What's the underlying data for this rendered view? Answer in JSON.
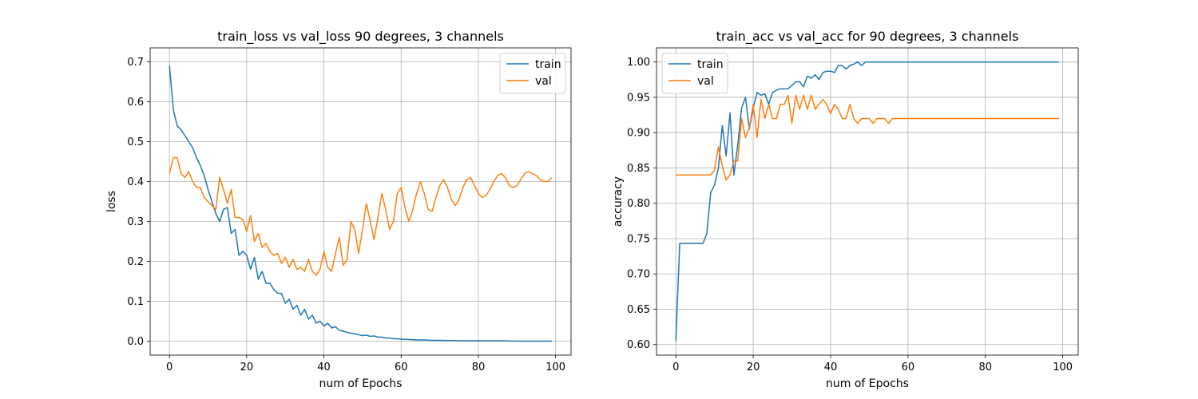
{
  "chart_data": [
    {
      "type": "line",
      "title": "train_loss vs val_loss 90 degrees, 3 channels",
      "xlabel": "num of Epochs",
      "ylabel": "loss",
      "xlim": [
        -5,
        104
      ],
      "ylim": [
        -0.035,
        0.735
      ],
      "xticks": [
        0,
        20,
        40,
        60,
        80,
        100
      ],
      "yticks": [
        0.0,
        0.1,
        0.2,
        0.3,
        0.4,
        0.5,
        0.6,
        0.7
      ],
      "ytick_labels": [
        "0.0",
        "0.1",
        "0.2",
        "0.3",
        "0.4",
        "0.5",
        "0.6",
        "0.7"
      ],
      "grid": true,
      "legend": "top-right",
      "series": [
        {
          "name": "train",
          "color": "#1f77b4",
          "x": [
            0,
            1,
            2,
            3,
            4,
            5,
            6,
            7,
            8,
            9,
            10,
            11,
            12,
            13,
            14,
            15,
            16,
            17,
            18,
            19,
            20,
            21,
            22,
            23,
            24,
            25,
            26,
            27,
            28,
            29,
            30,
            31,
            32,
            33,
            34,
            35,
            36,
            37,
            38,
            39,
            40,
            41,
            42,
            43,
            44,
            45,
            46,
            47,
            48,
            49,
            50,
            51,
            52,
            53,
            54,
            55,
            56,
            57,
            58,
            59,
            60,
            62,
            64,
            66,
            68,
            70,
            75,
            80,
            85,
            90,
            95,
            99
          ],
          "y": [
            0.69,
            0.58,
            0.54,
            0.53,
            0.515,
            0.5,
            0.485,
            0.46,
            0.44,
            0.415,
            0.38,
            0.35,
            0.32,
            0.3,
            0.33,
            0.335,
            0.27,
            0.28,
            0.215,
            0.225,
            0.215,
            0.18,
            0.21,
            0.155,
            0.175,
            0.145,
            0.145,
            0.13,
            0.12,
            0.12,
            0.095,
            0.105,
            0.08,
            0.09,
            0.065,
            0.08,
            0.055,
            0.065,
            0.045,
            0.05,
            0.038,
            0.045,
            0.033,
            0.036,
            0.027,
            0.025,
            0.022,
            0.02,
            0.018,
            0.016,
            0.014,
            0.015,
            0.012,
            0.013,
            0.01,
            0.01,
            0.008,
            0.008,
            0.006,
            0.006,
            0.005,
            0.004,
            0.003,
            0.003,
            0.002,
            0.002,
            0.001,
            0.001,
            0.001,
            0.0,
            0.0,
            0.0
          ]
        },
        {
          "name": "val",
          "color": "#ff7f0e",
          "x": [
            0,
            1,
            2,
            3,
            4,
            5,
            6,
            7,
            8,
            9,
            10,
            11,
            12,
            13,
            14,
            15,
            16,
            17,
            18,
            19,
            20,
            21,
            22,
            23,
            24,
            25,
            26,
            27,
            28,
            29,
            30,
            31,
            32,
            33,
            34,
            35,
            36,
            37,
            38,
            39,
            40,
            41,
            42,
            43,
            44,
            45,
            46,
            47,
            48,
            49,
            50,
            51,
            52,
            53,
            54,
            55,
            56,
            57,
            58,
            59,
            60,
            61,
            62,
            63,
            64,
            65,
            66,
            67,
            68,
            69,
            70,
            71,
            72,
            73,
            74,
            75,
            76,
            77,
            78,
            79,
            80,
            81,
            82,
            83,
            84,
            85,
            86,
            87,
            88,
            89,
            90,
            91,
            92,
            93,
            94,
            95,
            96,
            97,
            98,
            99
          ],
          "y": [
            0.42,
            0.46,
            0.46,
            0.42,
            0.41,
            0.425,
            0.4,
            0.385,
            0.385,
            0.36,
            0.35,
            0.34,
            0.33,
            0.41,
            0.38,
            0.345,
            0.38,
            0.31,
            0.31,
            0.305,
            0.275,
            0.315,
            0.25,
            0.27,
            0.235,
            0.245,
            0.225,
            0.215,
            0.22,
            0.195,
            0.21,
            0.185,
            0.205,
            0.18,
            0.185,
            0.175,
            0.205,
            0.175,
            0.165,
            0.18,
            0.225,
            0.185,
            0.175,
            0.22,
            0.26,
            0.19,
            0.205,
            0.3,
            0.28,
            0.22,
            0.28,
            0.345,
            0.3,
            0.255,
            0.31,
            0.37,
            0.33,
            0.28,
            0.3,
            0.37,
            0.385,
            0.335,
            0.3,
            0.33,
            0.37,
            0.4,
            0.37,
            0.33,
            0.325,
            0.36,
            0.39,
            0.405,
            0.385,
            0.355,
            0.34,
            0.355,
            0.385,
            0.405,
            0.41,
            0.39,
            0.37,
            0.36,
            0.365,
            0.38,
            0.4,
            0.415,
            0.42,
            0.41,
            0.39,
            0.385,
            0.39,
            0.405,
            0.42,
            0.425,
            0.42,
            0.415,
            0.405,
            0.4,
            0.4,
            0.41
          ]
        }
      ]
    },
    {
      "type": "line",
      "title": "train_acc vs val_acc for 90 degrees, 3 channels",
      "xlabel": "num of Epochs",
      "ylabel": "accuracy",
      "xlim": [
        -5,
        104
      ],
      "ylim": [
        0.585,
        1.02
      ],
      "xticks": [
        0,
        20,
        40,
        60,
        80,
        100
      ],
      "yticks": [
        0.6,
        0.65,
        0.7,
        0.75,
        0.8,
        0.85,
        0.9,
        0.95,
        1.0
      ],
      "ytick_labels": [
        "0.60",
        "0.65",
        "0.70",
        "0.75",
        "0.80",
        "0.85",
        "0.90",
        "0.95",
        "1.00"
      ],
      "grid": true,
      "legend": "top-left",
      "series": [
        {
          "name": "train",
          "color": "#1f77b4",
          "x": [
            0,
            1,
            2,
            3,
            4,
            5,
            6,
            7,
            8,
            9,
            10,
            11,
            12,
            13,
            14,
            15,
            16,
            17,
            18,
            19,
            20,
            21,
            22,
            23,
            24,
            25,
            26,
            27,
            28,
            29,
            30,
            31,
            32,
            33,
            34,
            35,
            36,
            37,
            38,
            39,
            40,
            41,
            42,
            43,
            44,
            45,
            46,
            47,
            48,
            49,
            50,
            55,
            60,
            70,
            80,
            90,
            99
          ],
          "y": [
            0.605,
            0.743,
            0.743,
            0.743,
            0.743,
            0.743,
            0.743,
            0.743,
            0.757,
            0.815,
            0.826,
            0.85,
            0.91,
            0.867,
            0.928,
            0.84,
            0.882,
            0.935,
            0.95,
            0.905,
            0.935,
            0.957,
            0.953,
            0.955,
            0.94,
            0.957,
            0.96,
            0.962,
            0.962,
            0.962,
            0.967,
            0.972,
            0.972,
            0.965,
            0.98,
            0.977,
            0.982,
            0.975,
            0.985,
            0.987,
            0.987,
            0.985,
            0.995,
            0.995,
            0.99,
            0.995,
            0.997,
            1.0,
            0.995,
            1.0,
            1.0,
            1.0,
            1.0,
            1.0,
            1.0,
            1.0,
            1.0
          ]
        },
        {
          "name": "val",
          "color": "#ff7f0e",
          "x": [
            0,
            1,
            2,
            3,
            4,
            5,
            6,
            7,
            8,
            9,
            10,
            11,
            12,
            13,
            14,
            15,
            16,
            17,
            18,
            19,
            20,
            21,
            22,
            23,
            24,
            25,
            26,
            27,
            28,
            29,
            30,
            31,
            32,
            33,
            34,
            35,
            36,
            37,
            38,
            39,
            40,
            41,
            42,
            43,
            44,
            45,
            46,
            47,
            48,
            49,
            50,
            51,
            52,
            53,
            54,
            55,
            56,
            60,
            70,
            80,
            90,
            99
          ],
          "y": [
            0.84,
            0.84,
            0.84,
            0.84,
            0.84,
            0.84,
            0.84,
            0.84,
            0.84,
            0.84,
            0.847,
            0.88,
            0.853,
            0.833,
            0.84,
            0.86,
            0.86,
            0.92,
            0.893,
            0.907,
            0.94,
            0.893,
            0.947,
            0.92,
            0.94,
            0.92,
            0.92,
            0.94,
            0.94,
            0.953,
            0.913,
            0.953,
            0.933,
            0.953,
            0.933,
            0.953,
            0.933,
            0.94,
            0.947,
            0.94,
            0.927,
            0.94,
            0.933,
            0.92,
            0.92,
            0.94,
            0.92,
            0.913,
            0.92,
            0.92,
            0.92,
            0.913,
            0.92,
            0.92,
            0.92,
            0.913,
            0.92,
            0.92,
            0.92,
            0.92,
            0.92,
            0.92
          ]
        }
      ]
    }
  ]
}
